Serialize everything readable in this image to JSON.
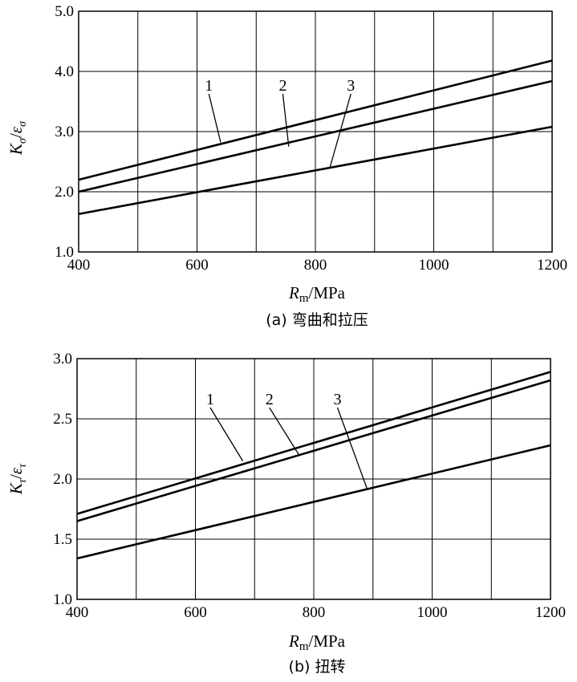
{
  "chart_data": [
    {
      "type": "line",
      "caption": "(a) 弯曲和拉压",
      "ylabel": "Kσ/εσ",
      "xlabel": "Rm/MPa",
      "xlim": [
        400,
        1200
      ],
      "ylim": [
        1.0,
        5.0
      ],
      "x_ticks": [
        "400",
        "600",
        "800",
        "1000",
        "1200"
      ],
      "y_ticks": [
        "1.0",
        "2.0",
        "3.0",
        "4.0",
        "5.0"
      ],
      "x_grid": [
        400,
        500,
        600,
        700,
        800,
        900,
        1000,
        1100,
        1200
      ],
      "y_grid": [
        2.0,
        3.0,
        4.0,
        5.0
      ],
      "series": [
        {
          "name": "1",
          "x": [
            400,
            1200
          ],
          "y": [
            2.2,
            4.18
          ],
          "label_anchor": [
            640,
            2.82
          ],
          "label_x": 620,
          "label_y": 3.68
        },
        {
          "name": "2",
          "x": [
            400,
            1200
          ],
          "y": [
            2.0,
            3.84
          ],
          "label_anchor": [
            755,
            2.75
          ],
          "label_x": 745,
          "label_y": 3.68
        },
        {
          "name": "3",
          "x": [
            400,
            1200
          ],
          "y": [
            1.63,
            3.08
          ],
          "label_anchor": [
            825,
            2.42
          ],
          "label_x": 860,
          "label_y": 3.68
        }
      ]
    },
    {
      "type": "line",
      "caption": "(b) 扭转",
      "ylabel": "Kτ/ετ",
      "xlabel": "Rm/MPa",
      "xlim": [
        400,
        1200
      ],
      "ylim": [
        1.0,
        3.0
      ],
      "x_ticks": [
        "400",
        "600",
        "800",
        "1000",
        "1200"
      ],
      "y_ticks": [
        "1.0",
        "1.5",
        "2.0",
        "2.5",
        "3.0"
      ],
      "x_grid": [
        400,
        500,
        600,
        700,
        800,
        900,
        1000,
        1100,
        1200
      ],
      "y_grid": [
        1.5,
        2.0,
        2.5,
        3.0
      ],
      "series": [
        {
          "name": "1",
          "x": [
            400,
            1200
          ],
          "y": [
            1.71,
            2.89
          ],
          "label_anchor": [
            680,
            2.15
          ],
          "label_x": 625,
          "label_y": 2.62
        },
        {
          "name": "2",
          "x": [
            400,
            1200
          ],
          "y": [
            1.65,
            2.82
          ],
          "label_anchor": [
            775,
            2.2
          ],
          "label_x": 725,
          "label_y": 2.62
        },
        {
          "name": "3",
          "x": [
            400,
            1200
          ],
          "y": [
            1.34,
            2.28
          ],
          "label_anchor": [
            890,
            1.92
          ],
          "label_x": 840,
          "label_y": 2.62
        }
      ]
    }
  ]
}
